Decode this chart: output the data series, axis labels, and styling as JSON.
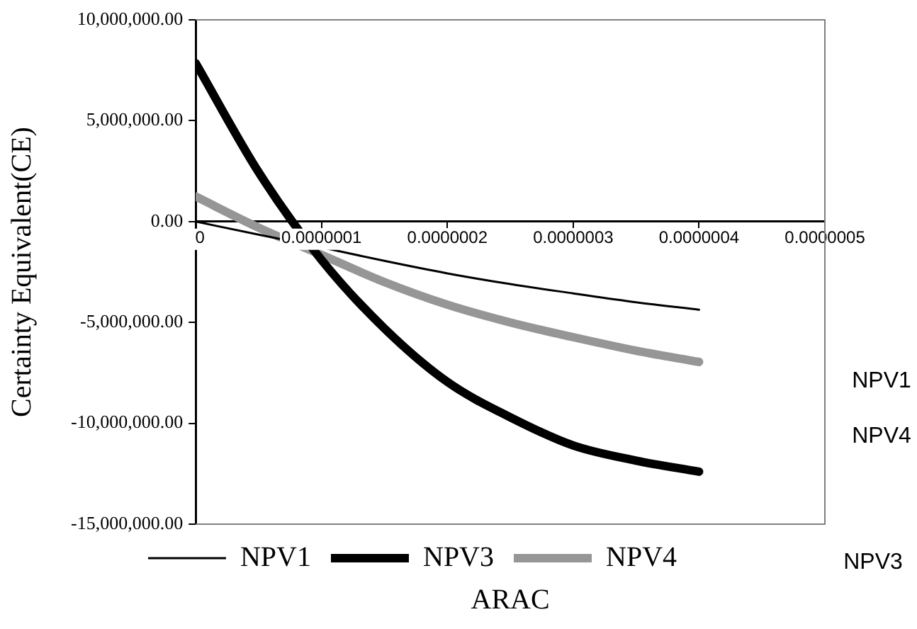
{
  "chart_data": {
    "type": "line",
    "xlabel": "ARAC",
    "ylabel": "Certainty Equivalent(CE)",
    "x": [
      0,
      5e-08,
      1e-07,
      1.5e-07,
      2e-07,
      2.5e-07,
      3e-07,
      3.5e-07,
      4e-07
    ],
    "series": [
      {
        "name": "NPV1",
        "color": "#000000",
        "values": [
          0,
          -650000,
          -1280000,
          -1950000,
          -2570000,
          -3100000,
          -3560000,
          -4000000,
          -4370000
        ]
      },
      {
        "name": "NPV3",
        "color": "#000000",
        "values": [
          7850000,
          2450000,
          -1900000,
          -5300000,
          -7950000,
          -9700000,
          -11100000,
          -11850000,
          -12400000
        ]
      },
      {
        "name": "NPV4",
        "color": "#969696",
        "values": [
          1240000,
          -300000,
          -1650000,
          -3000000,
          -4120000,
          -5000000,
          -5730000,
          -6400000,
          -6960000
        ]
      }
    ],
    "xlim": [
      0,
      5e-07
    ],
    "xticks": [
      0,
      {
        "value": 1e-07,
        "label": "0.0000001"
      },
      {
        "value": 2e-07,
        "label": "0.0000002"
      },
      {
        "value": 3e-07,
        "label": "0.0000003"
      },
      {
        "value": 4e-07,
        "label": "0.0000004"
      },
      {
        "value": 5e-07,
        "label": "0.0000005"
      }
    ],
    "ylim": [
      -15000000,
      10000000
    ],
    "yticks": [
      {
        "value": -15000000,
        "label": "-15,000,000.00"
      },
      {
        "value": -10000000,
        "label": "-10,000,000.00"
      },
      {
        "value": -5000000,
        "label": "-5,000,000.00"
      },
      {
        "value": 0,
        "label": "0.00"
      },
      {
        "value": 5000000,
        "label": "5,000,000.00"
      },
      {
        "value": 10000000,
        "label": "10,000,000.00"
      }
    ],
    "grid": false,
    "legend": "bottom",
    "marker": "none",
    "line_style": "solid",
    "annotations": [
      "NPV1",
      "NPV4",
      "NPV3"
    ]
  }
}
